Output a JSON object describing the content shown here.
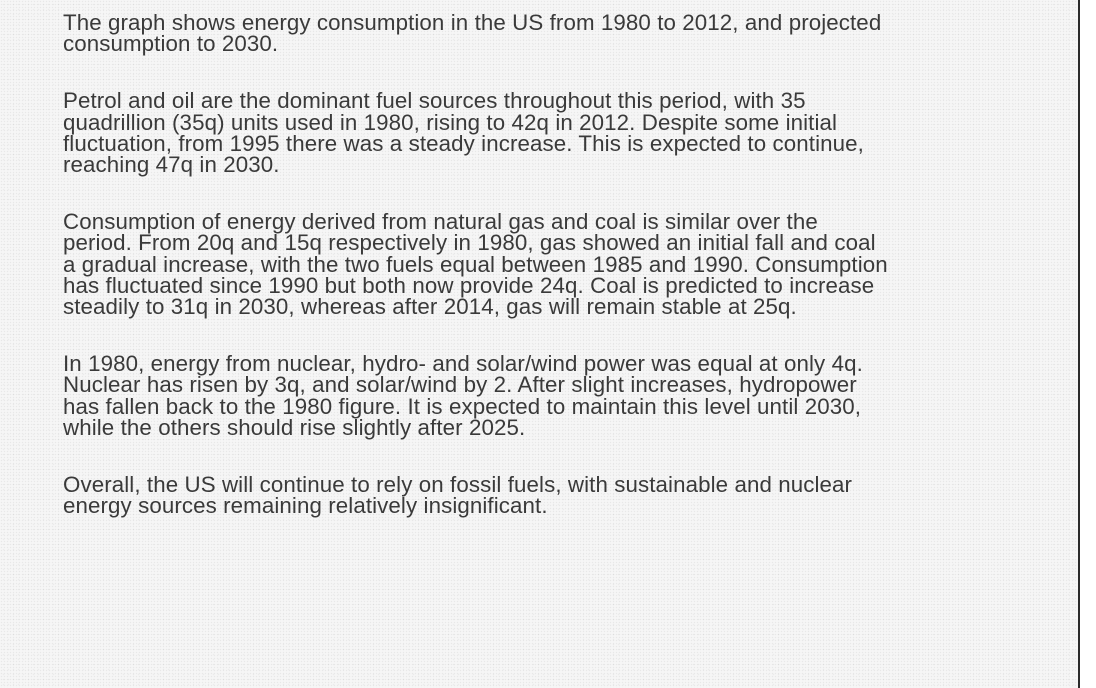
{
  "document": {
    "paragraphs": [
      {
        "lines": [
          "The graph shows energy consumption in the US from 1980 to 2012, and projected",
          "consumption to 2030."
        ]
      },
      {
        "lines": [
          "Petrol and oil are the dominant fuel sources throughout this period, with 35",
          "quadrillion (35q) units used in 1980, rising to 42q in 2012. Despite some initial",
          "fluctuation, from 1995 there was a steady increase. This is expected to continue,",
          "reaching 47q in 2030."
        ]
      },
      {
        "lines": [
          "Consumption of energy derived from natural gas and coal is similar over the",
          "period. From 20q and 15q respectively in 1980, gas showed an initial fall and coal",
          "a gradual increase, with the two fuels equal between 1985 and 1990. Consumption",
          "has fluctuated since 1990 but both now provide 24q. Coal is predicted to increase",
          "steadily to 31q in 2030, whereas after 2014, gas will remain stable at 25q."
        ]
      },
      {
        "lines": [
          "In 1980, energy from nuclear, hydro- and solar/wind power was equal at only 4q.",
          "Nuclear has risen by 3q, and solar/wind by 2. After slight increases, hydropower",
          "has fallen back to the 1980 figure. It is expected to maintain this level until 2030,",
          "while the others should rise slightly after 2025."
        ]
      },
      {
        "lines": [
          "Overall, the US will continue to rely on fossil fuels, with sustainable and nuclear",
          "energy sources remaining relatively insignificant."
        ]
      }
    ]
  }
}
